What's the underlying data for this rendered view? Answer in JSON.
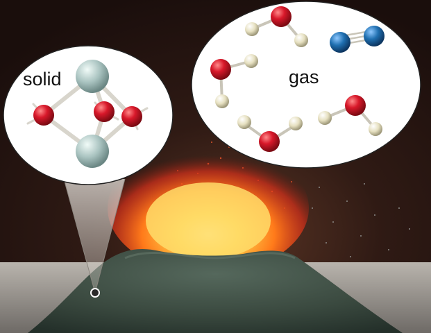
{
  "labels": {
    "solid": "solid",
    "gas": "gas"
  },
  "colors": {
    "oxygen": "#d0182a",
    "hydrogen": "#e9e4c6",
    "nitrogen": "#1f6fb0",
    "solid_cation": "#a9c3c0",
    "volcano": "#3f4f44",
    "fire": "#ff7a1a"
  },
  "icons": {
    "solid_bubble": "molecular-solid-structure-icon",
    "gas_bubble": "gas-molecules-icon"
  }
}
